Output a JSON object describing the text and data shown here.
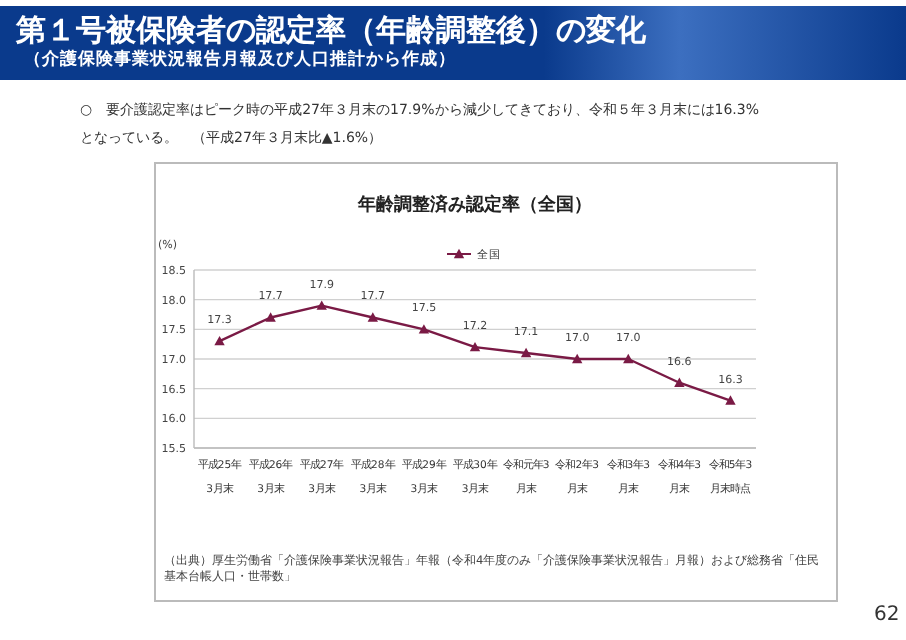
{
  "chart_data": {
    "type": "line",
    "title": "年齢調整済み認定率（全国）",
    "ylabel": "(%)",
    "categories": [
      "平成25年3月末",
      "平成26年3月末",
      "平成27年3月末",
      "平成28年3月末",
      "平成29年3月末",
      "平成30年3月末",
      "令和元年3月末",
      "令和2年3月末",
      "令和3年3月末",
      "令和4年3月末",
      "令和5年3月末時点"
    ],
    "series": [
      {
        "name": "全国",
        "color": "#7a1a45",
        "values": [
          17.3,
          17.7,
          17.9,
          17.7,
          17.5,
          17.2,
          17.1,
          17.0,
          17.0,
          16.6,
          16.3
        ],
        "value_labels": [
          "17.3",
          "17.7",
          "17.9",
          "17.7",
          "17.5",
          "17.2",
          "17.1",
          "17.0",
          "17.0",
          "16.6",
          "16.3"
        ]
      }
    ],
    "ylim": [
      15.5,
      18.5
    ],
    "yticks": [
      15.5,
      {
        "value": 16,
        "label": "16.0"
      },
      16.5,
      {
        "value": 17,
        "label": "17.0"
      },
      17.5,
      {
        "value": 18,
        "label": "18.0"
      },
      18.5
    ],
    "grid": "y",
    "legend": "top",
    "marker": "triangle",
    "line_style": "solid",
    "annotations": [
      "第１号被保険者の認定率（年齢調整後）の変化",
      "（介護保険事業状況報告月報及び人口推計から作成）",
      "○　要介護認定率はピーク時の平成27年３月末の17.9%から減少してきており、令和５年３月末には16.3%となっている。　（平成27年３月末比▲1.6%）",
      "（出典）厚生労働省「介護保険事業状況報告」年報（令和4年度のみ「介護保険事業状況報告」月報）および総務省「住民基本台帳人口・世帯数」",
      "62"
    ]
  }
}
